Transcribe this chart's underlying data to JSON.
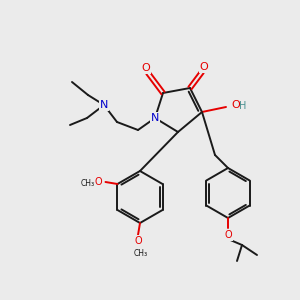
{
  "bg_color": "#ebebeb",
  "bond_color": "#1a1a1a",
  "oxygen_color": "#e60000",
  "nitrogen_color": "#0000cc",
  "hydroxyl_color": "#4a9090",
  "figsize": [
    3.0,
    3.0
  ],
  "dpi": 100,
  "xlim": [
    0,
    300
  ],
  "ylim": [
    0,
    300
  ]
}
